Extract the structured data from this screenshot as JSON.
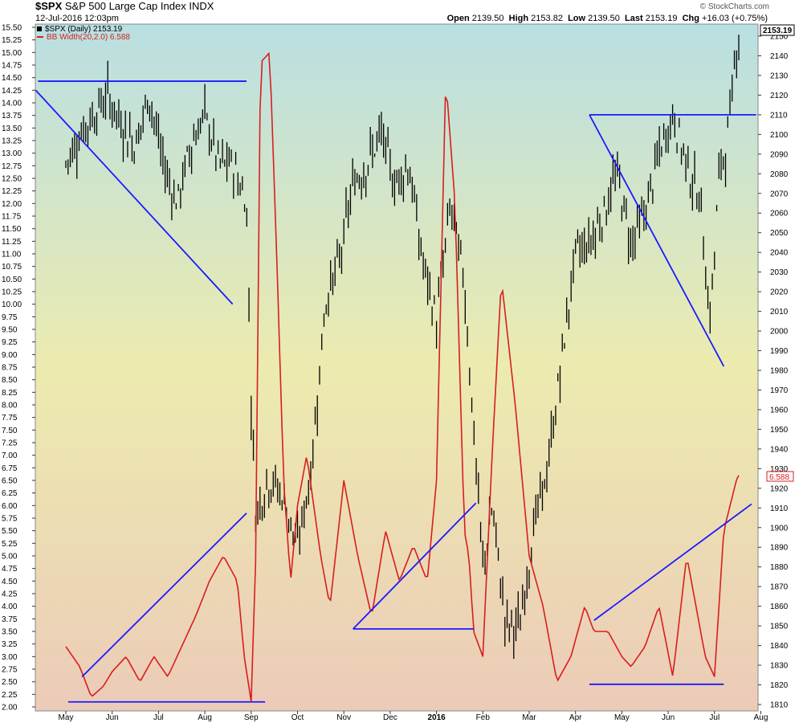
{
  "header": {
    "symbol": "$SPX",
    "name": "S&P 500 Large Cap Index",
    "exchange": "INDX",
    "datetime": "12-Jul-2016 12:03pm",
    "open_label": "Open",
    "open": "2139.50",
    "high_label": "High",
    "high": "2153.82",
    "low_label": "Low",
    "low": "2139.50",
    "last_label": "Last",
    "last": "2153.19",
    "chg_label": "Chg",
    "chg": "+16.03 (+0.75%)",
    "watermark": "© StockCharts.com"
  },
  "legend": {
    "price": "$SPX (Daily) 2153.19",
    "bb": "BB Width(20,2.0) 6.588"
  },
  "last_price_box": "2153.19",
  "last_bb_box": "6.588",
  "colors": {
    "price": "#000000",
    "bb": "#d81e1e",
    "trend": "#1a1aff",
    "bg_top": "#b9dfe2",
    "bg_mid": "#ecebaf",
    "bg_bottom": "#eccbb8"
  },
  "chart_data": {
    "type": "line",
    "x_ticks": [
      "May",
      "Jun",
      "Jul",
      "Aug",
      "Sep",
      "Oct",
      "Nov",
      "Dec",
      "2016",
      "Feb",
      "Mar",
      "Apr",
      "May",
      "Jun",
      "Jul",
      "Aug"
    ],
    "left_axis": {
      "ticks": [
        "15.50",
        "15.25",
        "15.00",
        "14.75",
        "14.50",
        "14.25",
        "14.00",
        "13.75",
        "13.50",
        "13.25",
        "13.00",
        "12.75",
        "12.50",
        "12.25",
        "12.00",
        "11.75",
        "11.50",
        "11.25",
        "11.00",
        "10.75",
        "10.50",
        "10.25",
        "10.00",
        "9.75",
        "9.50",
        "9.25",
        "9.00",
        "8.75",
        "8.50",
        "8.25",
        "8.00",
        "7.75",
        "7.50",
        "7.25",
        "7.00",
        "6.75",
        "6.50",
        "6.25",
        "6.00",
        "5.75",
        "5.50",
        "5.25",
        "5.00",
        "4.75",
        "4.50",
        "4.25",
        "4.00",
        "3.75",
        "3.50",
        "3.25",
        "3.00",
        "2.75",
        "2.50",
        "2.25",
        "2.00"
      ],
      "range": [
        2.0,
        15.5
      ]
    },
    "right_axis": {
      "ticks": [
        "2150",
        "2140",
        "2130",
        "2120",
        "2110",
        "2100",
        "2090",
        "2080",
        "2070",
        "2060",
        "2050",
        "2040",
        "2030",
        "2020",
        "2010",
        "2000",
        "1990",
        "1980",
        "1970",
        "1960",
        "1950",
        "1940",
        "1930",
        "1920",
        "1910",
        "1900",
        "1890",
        "1880",
        "1870",
        "1860",
        "1850",
        "1840",
        "1830",
        "1820",
        "1810"
      ],
      "range": [
        1810,
        2150
      ]
    },
    "series": [
      {
        "name": "$SPX (Daily)",
        "axis": "right",
        "x": [
          0.0,
          0.3,
          0.6,
          0.9,
          1.2,
          1.5,
          1.8,
          2.1,
          2.4,
          2.7,
          3.0,
          3.3,
          3.6,
          3.9,
          4.0,
          4.1,
          4.2,
          4.4,
          4.7,
          5.0,
          5.3,
          5.6,
          5.9,
          6.2,
          6.5,
          6.8,
          7.1,
          7.4,
          7.7,
          8.0,
          8.3,
          8.6,
          8.8,
          9.0,
          9.2,
          9.5,
          9.8,
          10.1,
          10.4,
          10.7,
          11.0,
          11.3,
          11.6,
          11.9,
          12.2,
          12.5,
          12.8,
          13.1,
          13.4,
          13.7,
          13.9,
          14.0,
          14.1,
          14.3,
          14.5
        ],
        "y": [
          2085,
          2100,
          2110,
          2120,
          2105,
          2095,
          2120,
          2085,
          2065,
          2095,
          2110,
          2085,
          2085,
          2065,
          1965,
          1905,
          1915,
          1925,
          1915,
          1890,
          1930,
          2015,
          2035,
          2075,
          2085,
          2100,
          2075,
          2085,
          2035,
          2005,
          2065,
          2025,
          1950,
          1880,
          1910,
          1850,
          1850,
          1900,
          1930,
          1985,
          2040,
          2045,
          2060,
          2080,
          2045,
          2060,
          2090,
          2110,
          2085,
          2065,
          2005,
          2040,
          2080,
          2100,
          2152
        ]
      },
      {
        "name": "BB Width(20,2.0)",
        "axis": "left",
        "x": [
          0.0,
          0.3,
          0.55,
          0.8,
          1.0,
          1.3,
          1.6,
          1.9,
          2.2,
          2.5,
          2.8,
          3.1,
          3.4,
          3.7,
          3.85,
          4.0,
          4.1,
          4.2,
          4.4,
          4.55,
          4.7,
          4.85,
          5.0,
          5.2,
          5.5,
          5.7,
          6.0,
          6.3,
          6.6,
          6.9,
          7.2,
          7.5,
          7.8,
          8.0,
          8.2,
          8.4,
          8.6,
          8.7,
          8.8,
          9.0,
          9.2,
          9.4,
          9.7,
          10.0,
          10.3,
          10.6,
          10.9,
          11.2,
          11.4,
          11.7,
          12.0,
          12.2,
          12.5,
          12.8,
          13.1,
          13.4,
          13.6,
          13.8,
          14.0,
          14.2,
          14.5
        ],
        "y": [
          3.2,
          2.8,
          2.2,
          2.4,
          2.7,
          3.0,
          2.5,
          3.0,
          2.6,
          3.2,
          3.8,
          4.5,
          5.0,
          4.5,
          3.0,
          2.1,
          5.0,
          14.8,
          15.0,
          11.0,
          6.5,
          4.5,
          6.0,
          7.0,
          5.0,
          4.0,
          6.5,
          5.0,
          3.8,
          5.5,
          4.5,
          5.2,
          4.5,
          6.5,
          14.5,
          12.0,
          5.5,
          5.0,
          3.5,
          3.0,
          7.0,
          10.5,
          8.0,
          5.0,
          4.0,
          2.5,
          3.0,
          4.0,
          3.5,
          3.5,
          3.0,
          2.8,
          3.2,
          4.0,
          2.6,
          5.0,
          4.0,
          3.0,
          2.6,
          5.5,
          6.6
        ]
      }
    ],
    "trendlines": "blue annotation lines: descending triangle lines and horizontal supports/resistances drawn on both price and BB width"
  }
}
